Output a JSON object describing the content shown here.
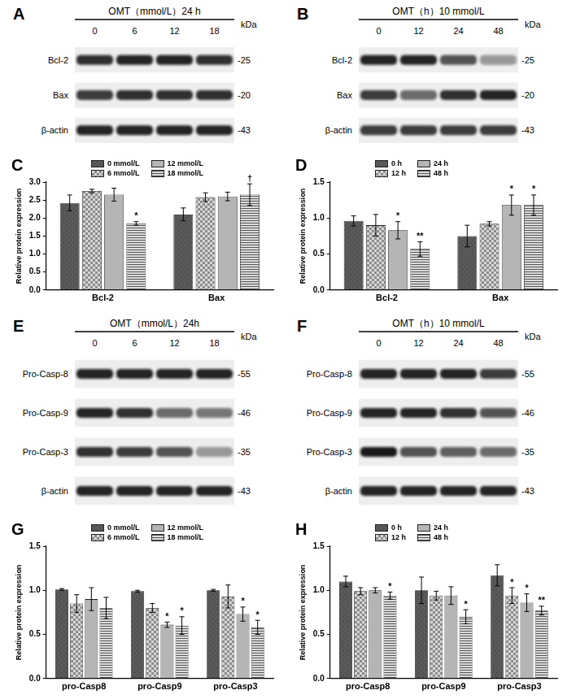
{
  "chart_data": [
    {
      "type": "bar",
      "annotations": [
        "C"
      ],
      "ylabel": "Relative protein expression",
      "categories": [
        "Bcl-2",
        "Bax"
      ],
      "series": [
        {
          "name": "0 mmol/L",
          "color": "#595959",
          "values": [
            2.42,
            2.1
          ],
          "errors": [
            0.22,
            0.18
          ],
          "marks": [
            null,
            null
          ]
        },
        {
          "name": "6 mmol/L",
          "color": "#8c8c8c",
          "values": [
            2.75,
            2.58
          ],
          "errors": [
            0.05,
            0.12
          ],
          "marks": [
            null,
            null
          ]
        },
        {
          "name": "12 mmol/L",
          "color": "#b5b5b5",
          "values": [
            2.65,
            2.6
          ],
          "errors": [
            0.18,
            0.12
          ],
          "marks": [
            null,
            null
          ]
        },
        {
          "name": "18 mmol/L",
          "color": "#dcdcdc",
          "values": [
            1.85,
            2.65
          ],
          "errors": [
            0.05,
            0.3
          ],
          "marks": [
            "*",
            "†"
          ]
        }
      ],
      "ylim": [
        0,
        3
      ],
      "yticks": [
        {
          "value": 0,
          "label": "0.0"
        },
        {
          "value": 0.5,
          "label": "0.5"
        },
        {
          "value": 1,
          "label": "1.0"
        },
        {
          "value": 1.5,
          "label": "1.5"
        },
        {
          "value": 2,
          "label": "2.0"
        },
        {
          "value": 2.5,
          "label": "2.5"
        },
        {
          "value": 3,
          "label": "3.0"
        }
      ],
      "grid": false,
      "legend": "top"
    },
    {
      "type": "bar",
      "annotations": [
        "D"
      ],
      "ylabel": "Relative protein expression",
      "categories": [
        "Bcl-2",
        "Bax"
      ],
      "series": [
        {
          "name": "0 h",
          "color": "#595959",
          "values": [
            0.96,
            0.75
          ],
          "errors": [
            0.07,
            0.15
          ],
          "marks": [
            null,
            null
          ]
        },
        {
          "name": "12 h",
          "color": "#8c8c8c",
          "values": [
            0.9,
            0.92
          ],
          "errors": [
            0.15,
            0.03
          ],
          "marks": [
            null,
            null
          ]
        },
        {
          "name": "24 h",
          "color": "#b5b5b5",
          "values": [
            0.83,
            1.18
          ],
          "errors": [
            0.12,
            0.14
          ],
          "marks": [
            "*",
            "*"
          ]
        },
        {
          "name": "48 h",
          "color": "#dcdcdc",
          "values": [
            0.57,
            1.18
          ],
          "errors": [
            0.1,
            0.14
          ],
          "marks": [
            "**",
            "*"
          ]
        }
      ],
      "ylim": [
        0,
        1.5
      ],
      "yticks": [
        {
          "value": 0,
          "label": "0.0"
        },
        {
          "value": 0.5,
          "label": "0.5"
        },
        {
          "value": 1,
          "label": "1.0"
        },
        {
          "value": 1.5,
          "label": "1.5"
        }
      ],
      "grid": false,
      "legend": "top"
    },
    {
      "type": "bar",
      "annotations": [
        "G"
      ],
      "ylabel": "Relative protein expression",
      "categories": [
        "pro-Casp8",
        "pro-Casp9",
        "pro-Casp3"
      ],
      "series": [
        {
          "name": "0 mmol/L",
          "color": "#595959",
          "values": [
            1.01,
            0.99,
            1.0
          ],
          "errors": [
            0.01,
            0.01,
            0.01
          ],
          "marks": [
            null,
            null,
            null
          ]
        },
        {
          "name": "6 mmol/L",
          "color": "#8c8c8c",
          "values": [
            0.85,
            0.8,
            0.93
          ],
          "errors": [
            0.1,
            0.05,
            0.13
          ],
          "marks": [
            null,
            null,
            null
          ]
        },
        {
          "name": "12 mmol/L",
          "color": "#b5b5b5",
          "values": [
            0.9,
            0.61,
            0.73
          ],
          "errors": [
            0.13,
            0.03,
            0.08
          ],
          "marks": [
            null,
            "*",
            "*"
          ]
        },
        {
          "name": "18 mmol/L",
          "color": "#dcdcdc",
          "values": [
            0.8,
            0.6,
            0.58
          ],
          "errors": [
            0.12,
            0.1,
            0.08
          ],
          "marks": [
            null,
            "*",
            "*"
          ]
        }
      ],
      "ylim": [
        0,
        1.5
      ],
      "yticks": [
        {
          "value": 0,
          "label": "0.0"
        },
        {
          "value": 0.5,
          "label": "0.5"
        },
        {
          "value": 1,
          "label": "1.0"
        },
        {
          "value": 1.5,
          "label": "1.5"
        }
      ],
      "grid": false,
      "legend": "top"
    },
    {
      "type": "bar",
      "annotations": [
        "H"
      ],
      "ylabel": "Relative protein expression",
      "categories": [
        "pro-Casp8",
        "pro-Casp9",
        "pro-Casp3"
      ],
      "series": [
        {
          "name": "0 h",
          "color": "#595959",
          "values": [
            1.1,
            1.0,
            1.17
          ],
          "errors": [
            0.06,
            0.15,
            0.12
          ],
          "marks": [
            null,
            null,
            null
          ]
        },
        {
          "name": "12 h",
          "color": "#8c8c8c",
          "values": [
            0.99,
            0.94,
            0.94
          ],
          "errors": [
            0.04,
            0.05,
            0.09
          ],
          "marks": [
            null,
            null,
            "*"
          ]
        },
        {
          "name": "24 h",
          "color": "#b5b5b5",
          "values": [
            1.0,
            0.94,
            0.86
          ],
          "errors": [
            0.03,
            0.1,
            0.1
          ],
          "marks": [
            null,
            null,
            "*"
          ]
        },
        {
          "name": "48 h",
          "color": "#dcdcdc",
          "values": [
            0.94,
            0.7,
            0.77
          ],
          "errors": [
            0.04,
            0.08,
            0.05
          ],
          "marks": [
            "*",
            "*",
            "**"
          ]
        }
      ],
      "ylim": [
        0,
        1.5
      ],
      "yticks": [
        {
          "value": 0,
          "label": "0.0"
        },
        {
          "value": 0.5,
          "label": "0.5"
        },
        {
          "value": 1,
          "label": "1.0"
        },
        {
          "value": 1.5,
          "label": "1.5"
        }
      ],
      "grid": false,
      "legend": "top"
    }
  ],
  "blots": [
    {
      "panel": "A",
      "title": "OMT（mmol/L）24 h",
      "unit": "kDa",
      "lanes": [
        "0",
        "6",
        "12",
        "18"
      ],
      "rows": [
        {
          "label": "Bcl-2",
          "kda": "-25",
          "bands": [
            0.85,
            0.9,
            0.9,
            0.85
          ]
        },
        {
          "label": "Bax",
          "kda": "-20",
          "bands": [
            0.8,
            0.85,
            0.85,
            0.85
          ]
        },
        {
          "label": "β-actin",
          "kda": "-43",
          "bands": [
            0.9,
            0.9,
            0.9,
            0.9
          ]
        }
      ]
    },
    {
      "panel": "B",
      "title": "OMT（h）10 mmol/L",
      "unit": "kDa",
      "lanes": [
        "0",
        "12",
        "24",
        "48"
      ],
      "rows": [
        {
          "label": "Bcl-2",
          "kda": "-25",
          "bands": [
            0.9,
            0.9,
            0.7,
            0.4
          ]
        },
        {
          "label": "Bax",
          "kda": "-20",
          "bands": [
            0.8,
            0.6,
            0.85,
            0.9
          ]
        },
        {
          "label": "β-actin",
          "kda": "-43",
          "bands": [
            0.8,
            0.8,
            0.8,
            0.8
          ]
        }
      ]
    },
    {
      "panel": "E",
      "title": "OMT（mmol/L）24h",
      "unit": "kDa",
      "lanes": [
        "0",
        "6",
        "12",
        "18"
      ],
      "rows": [
        {
          "label": "Pro-Casp-8",
          "kda": "-55",
          "bands": [
            0.9,
            0.9,
            0.9,
            0.9
          ]
        },
        {
          "label": "Pro-Casp-9",
          "kda": "-46",
          "bands": [
            0.9,
            0.85,
            0.6,
            0.55
          ]
        },
        {
          "label": "Pro-Casp-3",
          "kda": "-35",
          "bands": [
            0.85,
            0.8,
            0.7,
            0.4
          ]
        },
        {
          "label": "β-actin",
          "kda": "-43",
          "bands": [
            0.9,
            0.9,
            0.9,
            0.9
          ]
        }
      ]
    },
    {
      "panel": "F",
      "title": "OMT（h）10 mmol/L",
      "unit": "kDa",
      "lanes": [
        "0",
        "12",
        "24",
        "48"
      ],
      "rows": [
        {
          "label": "Pro-Casp-8",
          "kda": "-55",
          "bands": [
            0.9,
            0.9,
            0.9,
            0.8
          ]
        },
        {
          "label": "Pro-Casp-9",
          "kda": "-46",
          "bands": [
            0.9,
            0.9,
            0.85,
            0.7
          ]
        },
        {
          "label": "Pro-Casp-3",
          "kda": "-35",
          "bands": [
            0.95,
            0.7,
            0.65,
            0.6
          ]
        },
        {
          "label": "β-actin",
          "kda": "-43",
          "bands": [
            0.9,
            0.9,
            0.9,
            0.9
          ]
        }
      ]
    }
  ]
}
